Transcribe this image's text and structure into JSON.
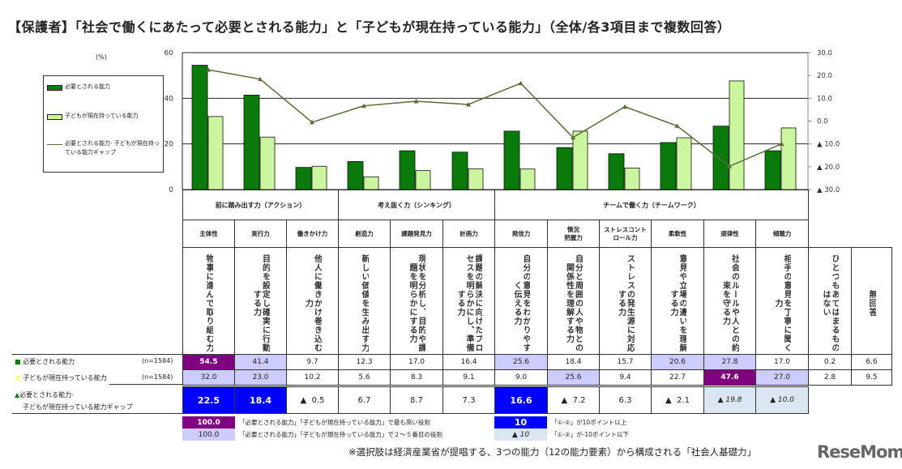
{
  "title": "【保護者】「社会で働くにあたって必要とされる能力」と「子どもが現在持っている能力」（全体/各3項目まで複数回答）",
  "chart_data": {
    "type": "bar+line",
    "y_unit_label": "(%)",
    "left_axis": {
      "range": [
        0,
        60
      ],
      "ticks": [
        "0",
        "20",
        "40",
        "60"
      ]
    },
    "right_axis": {
      "range": [
        -30,
        30
      ],
      "ticks": [
        "30.0",
        "20.0",
        "10.0",
        "0.0",
        "▲ 10.0",
        "▲ 20.0",
        "▲ 30.0"
      ]
    },
    "grid": true,
    "legend_placement": "left",
    "series": [
      {
        "name": "必要とされる能力",
        "type": "bar",
        "color": "#0a7a0a",
        "values": [
          54.5,
          41.4,
          9.7,
          12.3,
          17.0,
          16.4,
          25.6,
          18.4,
          15.7,
          20.6,
          27.8,
          17.0
        ]
      },
      {
        "name": "子どもが現在持っている能力",
        "type": "bar",
        "color": "#ccf5a0",
        "values": [
          32.0,
          23.0,
          10.2,
          5.6,
          8.3,
          9.1,
          9.0,
          25.6,
          9.4,
          22.7,
          47.6,
          27.0
        ]
      },
      {
        "name": "必要とされる能力- 子どもが現在持っている能力ギャップ",
        "type": "line",
        "axis": "right",
        "color": "#5b6b3a",
        "values": [
          22.5,
          18.4,
          -0.5,
          6.7,
          8.7,
          7.3,
          16.6,
          -7.2,
          6.3,
          -2.1,
          -19.8,
          -10.0
        ]
      }
    ]
  },
  "groups": [
    {
      "label": "前に踏み出す力（アクション）",
      "span": [
        0,
        2
      ]
    },
    {
      "label": "考え抜く力（シンキング）",
      "span": [
        3,
        5
      ]
    },
    {
      "label": "チームで働く力（チームワーク）",
      "span": [
        6,
        11
      ]
    }
  ],
  "columns": [
    {
      "label": "主体性",
      "desc": "物事に進んで取り組む力",
      "req": "54.5",
      "cur": "32.0",
      "gap": "22.5",
      "req_hl": "top",
      "cur_hl": "rank",
      "gap_hl": "ghigh"
    },
    {
      "label": "実行力",
      "desc": "目的を設定し確実に行動する力",
      "req": "41.4",
      "cur": "23.0",
      "gap": "18.4",
      "req_hl": "rank",
      "cur_hl": "rank",
      "gap_hl": "ghigh"
    },
    {
      "label": "働きかけ力",
      "desc": "他人に働きかけ巻き込む力",
      "req": "9.7",
      "cur": "10.2",
      "gap": "▲  0.5"
    },
    {
      "label": "創造力",
      "desc": "新しい価値を生み出す力",
      "req": "12.3",
      "cur": "5.6",
      "gap": "6.7"
    },
    {
      "label": "課題発見力",
      "desc": "現状を分析し、目的や課題を明らかにする力",
      "req": "17.0",
      "cur": "8.3",
      "gap": "8.7"
    },
    {
      "label": "計画力",
      "desc": "課題の解決に向けたプロセスを明らかにし、準備する力",
      "req": "16.4",
      "cur": "9.1",
      "gap": "7.3"
    },
    {
      "label": "発信力",
      "desc": "自分の意見をわかりやすく伝える力",
      "req": "25.6",
      "cur": "9.0",
      "gap": "16.6",
      "req_hl": "rank",
      "gap_hl": "ghigh"
    },
    {
      "label": "情況\n把握力",
      "desc": "自分と周囲の人や物との関係性を理解する力",
      "req": "18.4",
      "cur": "25.6",
      "gap": "▲  7.2",
      "cur_hl": "rank"
    },
    {
      "label": "ストレスコント\nロール力",
      "desc": "ストレスの発生源に対応する力",
      "req": "15.7",
      "cur": "9.4",
      "gap": "6.3"
    },
    {
      "label": "柔軟性",
      "desc": "意見や立場の違いを理解する力",
      "req": "20.6",
      "cur": "22.7",
      "gap": "▲  2.1",
      "req_hl": "rank"
    },
    {
      "label": "規律性",
      "desc": "社会のルールや人との約束を守る力",
      "req": "27.8",
      "cur": "47.6",
      "gap": "▲ 19.8",
      "req_hl": "rank",
      "cur_hl": "top",
      "gap_hl": "glow"
    },
    {
      "label": "傾聴力",
      "desc": "相手の意見を丁寧に聞く力",
      "req": "17.0",
      "cur": "27.0",
      "gap": "▲ 10.0",
      "cur_hl": "rank",
      "gap_hl": "glow"
    },
    {
      "label": "",
      "desc": "ひとつもあてはまるものはない",
      "req": "0.2",
      "cur": "2.8"
    },
    {
      "label": "",
      "desc": "無回答",
      "req": "6.6",
      "cur": "9.5"
    }
  ],
  "rows": {
    "req_label": "必要とされる能力",
    "req_n": "(n=1584)",
    "cur_label": "子どもが現在持っている能力",
    "cur_n": "(n=1584)",
    "gap_label_1": "必要とされる能力-",
    "gap_label_2": "子どもが現在持っている能力ギャップ"
  },
  "legend_notes": [
    {
      "swatch": "100.0",
      "text": "「必要とされる能力」「子どもが現在持っている能力」で最も高い役割",
      "style": "top"
    },
    {
      "swatch": "100.0",
      "text": "「必要とされる能力」「子どもが現在持っている能力」で２～５番目の役割",
      "style": "rank"
    },
    {
      "swatch": "10",
      "text": "「①-②」が10ポイント以上",
      "style": "ghigh"
    },
    {
      "swatch": "▲ 10",
      "text": "「①-②」が-10ポイント以下",
      "style": "glow"
    }
  ],
  "footnote": "※選択肢は経済産業省が提唱する、3つの能力（12の能力要素）から構成される「社会人基礎力」",
  "logo": "ReseMom"
}
